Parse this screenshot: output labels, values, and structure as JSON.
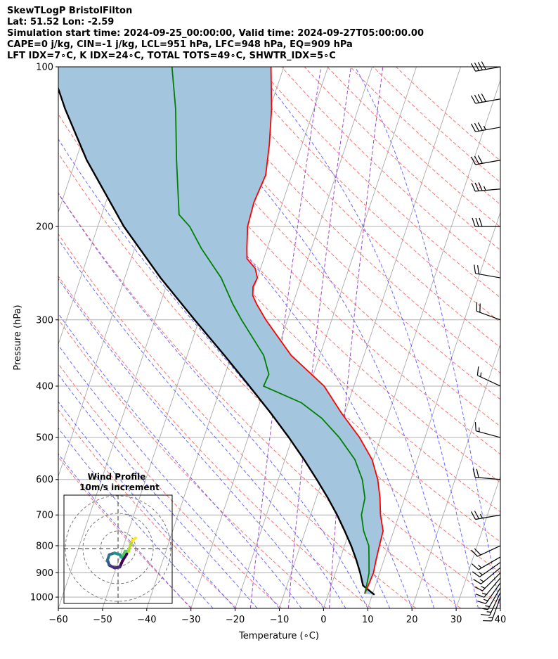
{
  "header": {
    "line1": "SkewTLogP BristolFilton",
    "line2": "Lat: 51.52   Lon: -2.59",
    "line3": "Simulation start time: 2024-09-25_00:00:00, Valid time: 2024-09-27T05:00:00.00",
    "line4": "CAPE=0 j/kg, CIN=-1 j/kg, LCL=951 hPa, LFC=948 hPa, EQ=909 hPa",
    "line5": "LFT IDX=7∘C, K IDX=24∘C, TOTAL TOTS=49∘C, SHWTR_IDX=5∘C"
  },
  "chart_data": [
    {
      "type": "line",
      "subtype": "skew-t log-p",
      "xlabel": "Temperature (∘C)",
      "ylabel": "Pressure (hPa)",
      "xlim": [
        -60,
        40
      ],
      "ylim": [
        1050,
        100
      ],
      "y_scale": "log",
      "x_ticks": [
        -60,
        -50,
        -40,
        -30,
        -20,
        -10,
        0,
        10,
        20,
        30,
        40
      ],
      "x_tick_labels": [
        "−60",
        "−50",
        "−40",
        "−30",
        "−20",
        "−10",
        "0",
        "10",
        "20",
        "30",
        "40"
      ],
      "y_ticks": [
        1000,
        900,
        800,
        700,
        600,
        500,
        400,
        300,
        200,
        100
      ],
      "y_tick_labels": [
        "1000",
        "900",
        "800",
        "700",
        "600",
        "500",
        "400",
        "300",
        "200",
        "100"
      ],
      "grid": true,
      "colors": {
        "temperature": "#ff0000",
        "dewpoint": "#008000",
        "parcel": "#000000",
        "shading": "#a3c6de",
        "dry_adiabats": "#ff6060",
        "moist_adiabats": "#5050ff",
        "mixing_ratio": "#9a48c8",
        "isotherms": "#aaaaaa"
      },
      "series": [
        {
          "role": "temperature",
          "points": [
            [
              985,
              8.2
            ],
            [
              950,
              8.4
            ],
            [
              900,
              8.6
            ],
            [
              850,
              8.2
            ],
            [
              800,
              7.9
            ],
            [
              750,
              7.6
            ],
            [
              700,
              5.8
            ],
            [
              650,
              4.4
            ],
            [
              600,
              2.5
            ],
            [
              550,
              -0.3
            ],
            [
              500,
              -4.8
            ],
            [
              450,
              -10.7
            ],
            [
              400,
              -16.7
            ],
            [
              350,
              -26.5
            ],
            [
              300,
              -34.9
            ],
            [
              280,
              -38.2
            ],
            [
              270,
              -39.7
            ],
            [
              260,
              -40.3
            ],
            [
              250,
              -40.0
            ],
            [
              240,
              -41.2
            ],
            [
              230,
              -43.8
            ],
            [
              220,
              -44.6
            ],
            [
              200,
              -46.1
            ],
            [
              180,
              -46.5
            ],
            [
              160,
              -45.9
            ],
            [
              140,
              -47.4
            ],
            [
              120,
              -49.6
            ],
            [
              100,
              -52.9
            ]
          ]
        },
        {
          "role": "dewpoint",
          "points": [
            [
              985,
              8.2
            ],
            [
              950,
              8.0
            ],
            [
              900,
              7.6
            ],
            [
              850,
              6.6
            ],
            [
              800,
              5.5
            ],
            [
              750,
              3.2
            ],
            [
              700,
              1.5
            ],
            [
              650,
              1.0
            ],
            [
              600,
              -1.0
            ],
            [
              550,
              -4.2
            ],
            [
              500,
              -9.4
            ],
            [
              460,
              -14.8
            ],
            [
              430,
              -20.6
            ],
            [
              400,
              -30.4
            ],
            [
              380,
              -30.1
            ],
            [
              350,
              -32.7
            ],
            [
              300,
              -40.4
            ],
            [
              280,
              -43.6
            ],
            [
              250,
              -48.2
            ],
            [
              220,
              -54.9
            ],
            [
              200,
              -59.2
            ],
            [
              190,
              -62.5
            ],
            [
              150,
              -67.2
            ],
            [
              120,
              -71.3
            ],
            [
              100,
              -75.3
            ]
          ]
        },
        {
          "role": "parcel",
          "points": [
            [
              990,
              10.5
            ],
            [
              951,
              7.2
            ],
            [
              900,
              5.6
            ],
            [
              850,
              3.7
            ],
            [
              800,
              1.5
            ],
            [
              750,
              -1.1
            ],
            [
              700,
              -4.0
            ],
            [
              650,
              -7.4
            ],
            [
              600,
              -11.3
            ],
            [
              550,
              -15.7
            ],
            [
              500,
              -20.8
            ],
            [
              450,
              -26.7
            ],
            [
              400,
              -33.6
            ],
            [
              350,
              -41.6
            ],
            [
              300,
              -51.0
            ],
            [
              250,
              -61.9
            ],
            [
              200,
              -74.1
            ],
            [
              150,
              -87.5
            ],
            [
              120,
              -96.3
            ],
            [
              100,
              -102.7
            ]
          ]
        }
      ],
      "wind_barbs": {
        "color": "#000000",
        "pressures": [
          1000,
          980,
          960,
          940,
          920,
          900,
          880,
          860,
          840,
          800,
          700,
          600,
          500,
          400,
          300,
          250,
          200,
          170,
          150,
          130,
          115,
          100
        ],
        "speed_kt": [
          15,
          15,
          15,
          15,
          15,
          15,
          15,
          15,
          15,
          20,
          25,
          20,
          15,
          15,
          20,
          20,
          30,
          35,
          30,
          35,
          40,
          40
        ],
        "dir_deg": [
          200,
          205,
          210,
          215,
          220,
          225,
          230,
          235,
          240,
          245,
          260,
          275,
          285,
          295,
          290,
          280,
          270,
          265,
          260,
          260,
          260,
          260
        ]
      }
    },
    {
      "type": "scatter",
      "title": "Wind Profile",
      "subtitle": "10m/s increment",
      "ring_step_ms": 10,
      "colormap": "viridis",
      "points": [
        [
          5.0,
          -3.0
        ],
        [
          2.5,
          -7.0
        ],
        [
          1.0,
          -10.5
        ],
        [
          -2.0,
          -11.0
        ],
        [
          -5.0,
          -9.5
        ],
        [
          -6.0,
          -6.5
        ],
        [
          -5.0,
          -3.5
        ],
        [
          -2.0,
          -2.5
        ],
        [
          1.0,
          -3.5
        ],
        [
          2.0,
          -5.0
        ],
        [
          3.0,
          -3.5
        ],
        [
          4.0,
          -1.5
        ],
        [
          6.0,
          -1.5
        ],
        [
          7.0,
          2.0
        ],
        [
          8.0,
          4.5
        ],
        [
          10.0,
          6.0
        ]
      ]
    }
  ]
}
